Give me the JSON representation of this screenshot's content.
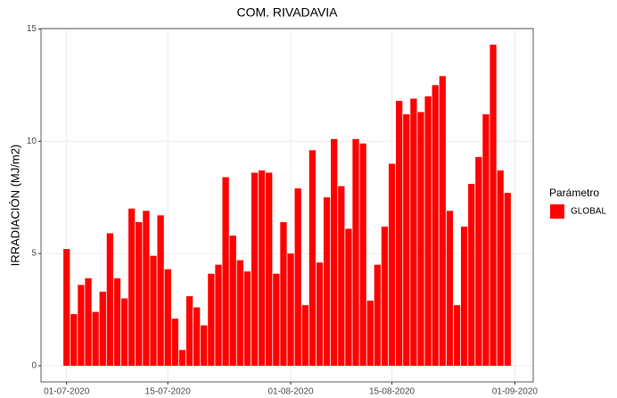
{
  "chart_data": {
    "type": "bar",
    "title": "COM. RIVADAVIA",
    "y_label": "IRRADIACIÓN (MJ/m2)",
    "x": [
      "2020-07-01",
      "2020-07-02",
      "2020-07-03",
      "2020-07-04",
      "2020-07-05",
      "2020-07-06",
      "2020-07-07",
      "2020-07-08",
      "2020-07-09",
      "2020-07-10",
      "2020-07-11",
      "2020-07-12",
      "2020-07-13",
      "2020-07-14",
      "2020-07-15",
      "2020-07-16",
      "2020-07-17",
      "2020-07-18",
      "2020-07-19",
      "2020-07-20",
      "2020-07-21",
      "2020-07-22",
      "2020-07-23",
      "2020-07-24",
      "2020-07-25",
      "2020-07-26",
      "2020-07-27",
      "2020-07-28",
      "2020-07-29",
      "2020-07-30",
      "2020-07-31",
      "2020-08-01",
      "2020-08-02",
      "2020-08-03",
      "2020-08-04",
      "2020-08-05",
      "2020-08-06",
      "2020-08-07",
      "2020-08-08",
      "2020-08-09",
      "2020-08-10",
      "2020-08-11",
      "2020-08-12",
      "2020-08-13",
      "2020-08-14",
      "2020-08-15",
      "2020-08-16",
      "2020-08-17",
      "2020-08-18",
      "2020-08-19",
      "2020-08-20",
      "2020-08-21",
      "2020-08-22",
      "2020-08-23",
      "2020-08-24",
      "2020-08-25",
      "2020-08-26",
      "2020-08-27",
      "2020-08-28",
      "2020-08-29",
      "2020-08-30",
      "2020-08-31"
    ],
    "series": [
      {
        "name": "GLOBAL",
        "color": "#ff0000",
        "values": [
          5.2,
          2.3,
          3.6,
          3.9,
          2.4,
          3.3,
          5.9,
          3.9,
          3.0,
          7.0,
          6.4,
          6.9,
          4.9,
          6.7,
          4.3,
          2.1,
          0.7,
          3.1,
          2.6,
          1.8,
          4.1,
          4.5,
          8.4,
          5.8,
          4.7,
          4.2,
          8.6,
          8.7,
          8.6,
          4.1,
          6.4,
          5.0,
          7.9,
          2.7,
          9.6,
          4.6,
          7.5,
          10.1,
          8.0,
          6.1,
          10.1,
          9.9,
          2.9,
          4.5,
          6.2,
          9.0,
          11.8,
          11.2,
          11.9,
          11.3,
          12.0,
          12.5,
          12.9,
          6.9,
          2.7,
          6.2,
          8.1,
          9.3,
          11.2,
          14.3,
          8.7,
          7.7
        ]
      }
    ],
    "legend_title": "Parámetro",
    "legend": "right",
    "xlim": [
      "2020-06-27T11:00",
      "2020-09-03T13:00"
    ],
    "xticks": [
      {
        "value": "2020-07-01",
        "label": "01-07-2020"
      },
      {
        "value": "2020-07-15",
        "label": "15-07-2020"
      },
      {
        "value": "2020-08-01",
        "label": "01-08-2020"
      },
      {
        "value": "2020-08-15",
        "label": "15-08-2020"
      },
      {
        "value": "2020-09-01",
        "label": "01-09-2020"
      }
    ],
    "ylim": [
      -0.72,
      15.02
    ],
    "yticks": [
      0,
      5,
      10,
      15
    ],
    "grid": true
  }
}
